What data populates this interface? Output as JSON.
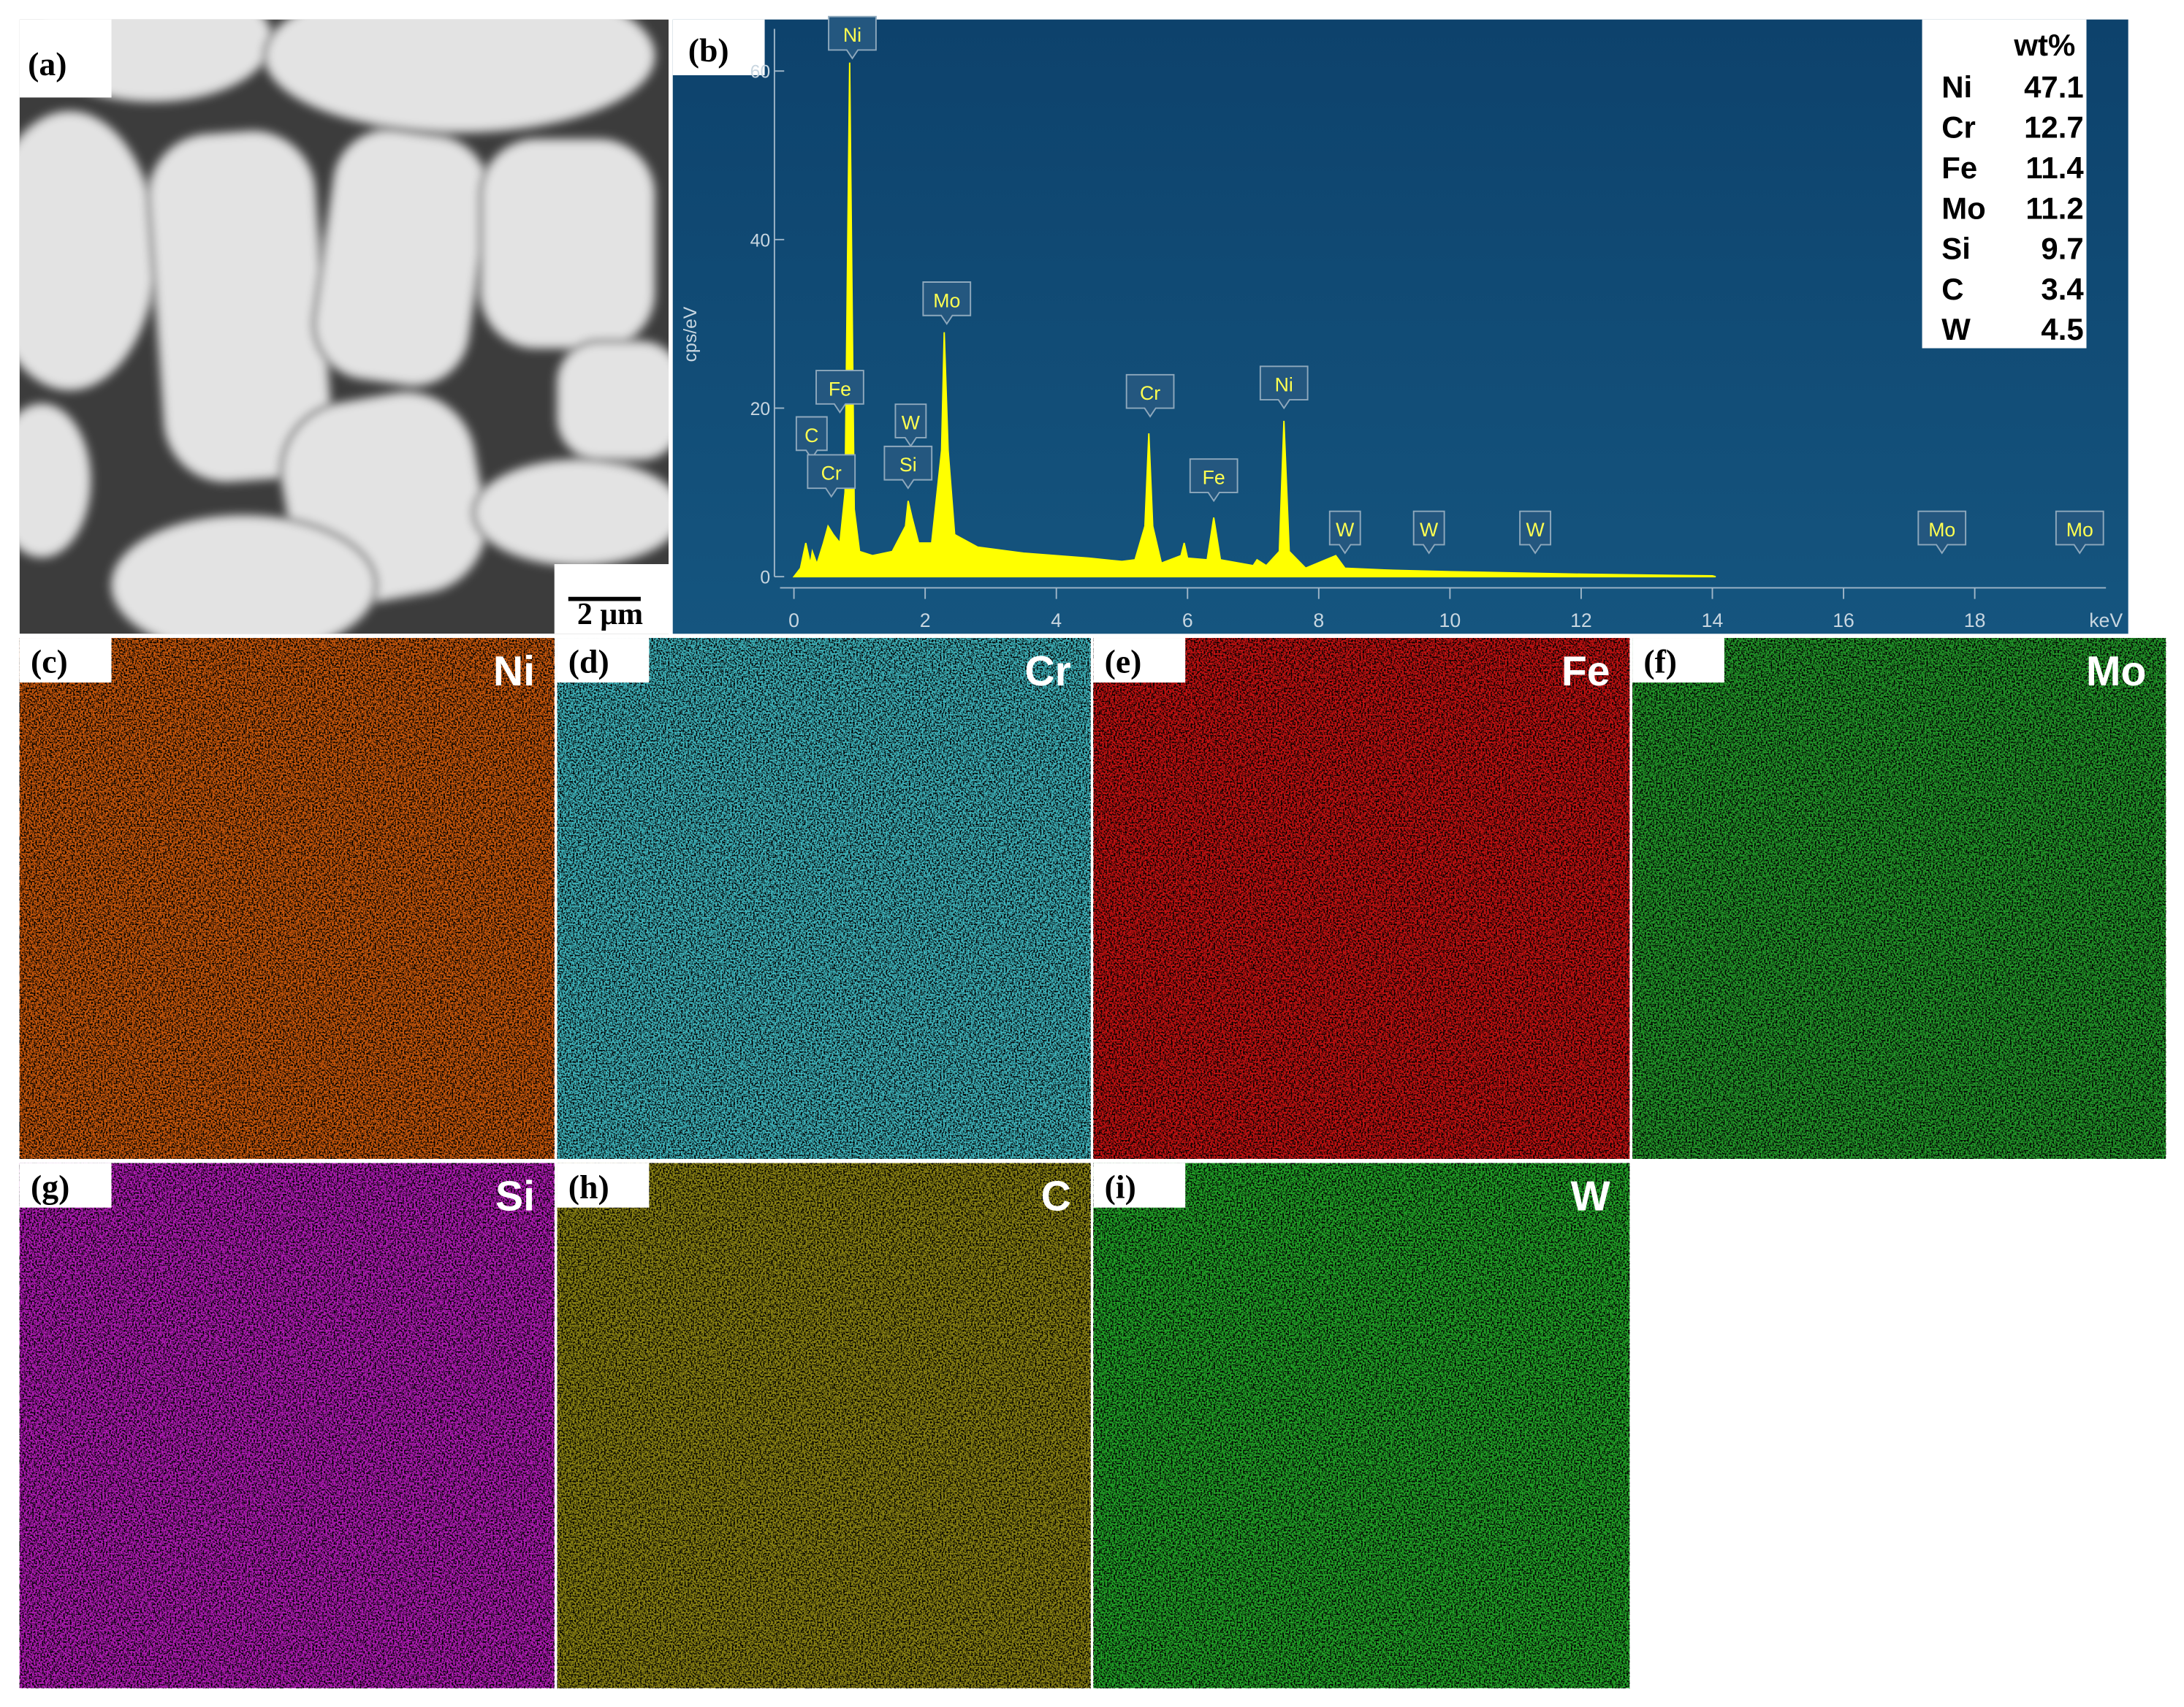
{
  "panels": {
    "a": {
      "label": "(a)",
      "scale_bar": "2 μm"
    },
    "b": {
      "label": "(b)"
    },
    "maps": [
      {
        "label": "(c)",
        "element": "Ni",
        "color": "#c9580c"
      },
      {
        "label": "(d)",
        "element": "Cr",
        "color": "#3fb5bd"
      },
      {
        "label": "(e)",
        "element": "Fe",
        "color": "#c41212"
      },
      {
        "label": "(f)",
        "element": "Mo",
        "color": "#23992a"
      },
      {
        "label": "(g)",
        "element": "Si",
        "color": "#b21cb6"
      },
      {
        "label": "(h)",
        "element": "C",
        "color": "#8c8414"
      },
      {
        "label": "(i)",
        "element": "W",
        "color": "#22a528"
      }
    ]
  },
  "table": {
    "header": "wt%",
    "rows": [
      [
        "Ni",
        47.1
      ],
      [
        "Cr",
        12.7
      ],
      [
        "Fe",
        11.4
      ],
      [
        "Mo",
        11.2
      ],
      [
        "Si",
        9.7
      ],
      [
        "C",
        3.4
      ],
      [
        "W",
        4.5
      ]
    ]
  },
  "chart_data": {
    "type": "area",
    "color": "#ffff00",
    "x": [
      0,
      0.1,
      0.18,
      0.25,
      0.28,
      0.35,
      0.45,
      0.52,
      0.6,
      0.7,
      0.78,
      0.85,
      0.92,
      1.0,
      1.2,
      1.5,
      1.7,
      1.74,
      1.8,
      1.9,
      2.1,
      2.25,
      2.29,
      2.35,
      2.45,
      2.8,
      3.5,
      4.5,
      5.0,
      5.2,
      5.35,
      5.41,
      5.47,
      5.6,
      5.9,
      5.95,
      6.0,
      6.3,
      6.4,
      6.5,
      7.0,
      7.06,
      7.2,
      7.4,
      7.47,
      7.55,
      7.8,
      8.26,
      8.4,
      9.0,
      10,
      12,
      14,
      14.05
    ],
    "values": [
      0,
      1,
      4,
      1.5,
      3,
      1.5,
      4,
      6,
      5,
      4,
      10,
      61,
      8,
      3,
      2.5,
      3,
      6,
      9,
      7,
      4,
      4,
      15,
      29,
      15,
      5,
      3.5,
      2.8,
      2.2,
      1.8,
      2,
      6,
      17,
      6,
      1.6,
      2.5,
      4,
      2.2,
      2,
      7,
      2,
      1.3,
      2,
      1.3,
      3,
      18.5,
      3,
      1,
      2.5,
      1,
      0.8,
      0.6,
      0.3,
      0.1,
      0
    ],
    "xlim": [
      0,
      20
    ],
    "ylim": [
      0,
      65
    ],
    "xticks": [
      0,
      2,
      4,
      6,
      8,
      10,
      12,
      14,
      16,
      18
    ],
    "yticks": [
      0,
      20,
      40,
      60
    ],
    "xlabel": "keV",
    "ylabel": "cps/eV",
    "annotations": [
      {
        "text": "Ni",
        "x": 0.89,
        "y": 61.5
      },
      {
        "text": "C",
        "x": 0.27,
        "y": 14
      },
      {
        "text": "Fe",
        "x": 0.7,
        "y": 19.5
      },
      {
        "text": "Cr",
        "x": 0.57,
        "y": 9.5
      },
      {
        "text": "W",
        "x": 1.78,
        "y": 15.5
      },
      {
        "text": "Si",
        "x": 1.74,
        "y": 10.5
      },
      {
        "text": "Mo",
        "x": 2.33,
        "y": 30
      },
      {
        "text": "Cr",
        "x": 5.43,
        "y": 19
      },
      {
        "text": "Fe",
        "x": 6.4,
        "y": 9
      },
      {
        "text": "Ni",
        "x": 7.47,
        "y": 20
      },
      {
        "text": "W",
        "x": 8.4,
        "y": 2.8
      },
      {
        "text": "W",
        "x": 9.68,
        "y": 2.8
      },
      {
        "text": "W",
        "x": 11.3,
        "y": 2.8
      },
      {
        "text": "Mo",
        "x": 17.5,
        "y": 2.8
      },
      {
        "text": "Mo",
        "x": 19.6,
        "y": 2.8
      }
    ]
  }
}
